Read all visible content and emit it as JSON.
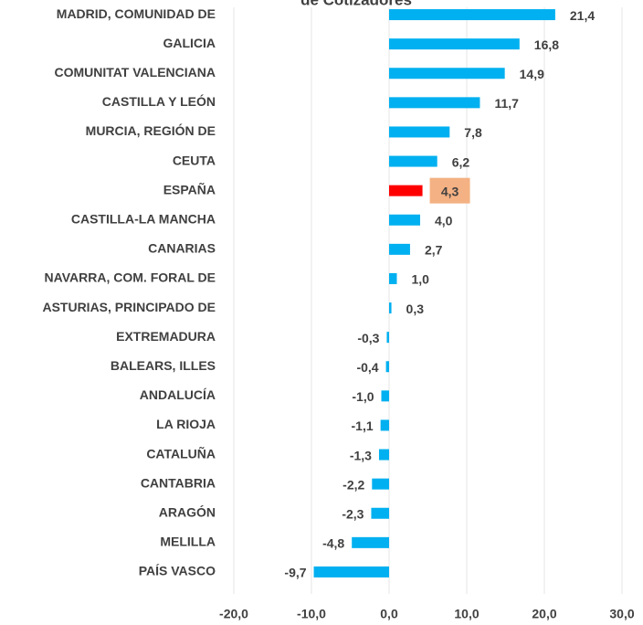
{
  "chart_data": {
    "type": "barh",
    "title": "de Cotizadores",
    "categories": [
      "MADRID, COMUNIDAD DE",
      "GALICIA",
      "COMUNITAT VALENCIANA",
      "CASTILLA Y LEÓN",
      "MURCIA, REGIÓN DE",
      "CEUTA",
      "ESPAÑA",
      "CASTILLA-LA MANCHA",
      "CANARIAS",
      "NAVARRA, COM. FORAL DE",
      "ASTURIAS, PRINCIPADO DE",
      "EXTREMADURA",
      "BALEARS, ILLES",
      "ANDALUCÍA",
      "LA RIOJA",
      "CATALUÑA",
      "CANTABRIA",
      "ARAGÓN",
      "MELILLA",
      "PAÍS VASCO"
    ],
    "values": [
      21.4,
      16.8,
      14.9,
      11.7,
      7.8,
      6.2,
      4.3,
      4.0,
      2.7,
      1.0,
      0.3,
      -0.3,
      -0.4,
      -1.0,
      -1.1,
      -1.3,
      -2.2,
      -2.3,
      -4.8,
      -9.7
    ],
    "value_labels": [
      "21,4",
      "16,8",
      "14,9",
      "11,7",
      "7,8",
      "6,2",
      "4,3",
      "4,0",
      "2,7",
      "1,0",
      "0,3",
      "-0,3",
      "-0,4",
      "-1,0",
      "-1,1",
      "-1,3",
      "-2,2",
      "-2,3",
      "-4,8",
      "-9,7"
    ],
    "colors": [
      "#00b0f0",
      "#00b0f0",
      "#00b0f0",
      "#00b0f0",
      "#00b0f0",
      "#00b0f0",
      "#ff0000",
      "#00b0f0",
      "#00b0f0",
      "#00b0f0",
      "#00b0f0",
      "#00b0f0",
      "#00b0f0",
      "#00b0f0",
      "#00b0f0",
      "#00b0f0",
      "#00b0f0",
      "#00b0f0",
      "#00b0f0",
      "#00b0f0"
    ],
    "highlight_label_color": "#f4b183",
    "highlight_index": 6,
    "xlim": [
      -20,
      30
    ],
    "xticks": [
      {
        "value": -20,
        "label": "-20,0"
      },
      {
        "value": -10,
        "label": "-10,0"
      },
      {
        "value": 0,
        "label": "0,0"
      },
      {
        "value": 10,
        "label": "10,0"
      },
      {
        "value": 20,
        "label": "20,0"
      },
      {
        "value": 30,
        "label": "30,0"
      }
    ],
    "grid": true
  }
}
